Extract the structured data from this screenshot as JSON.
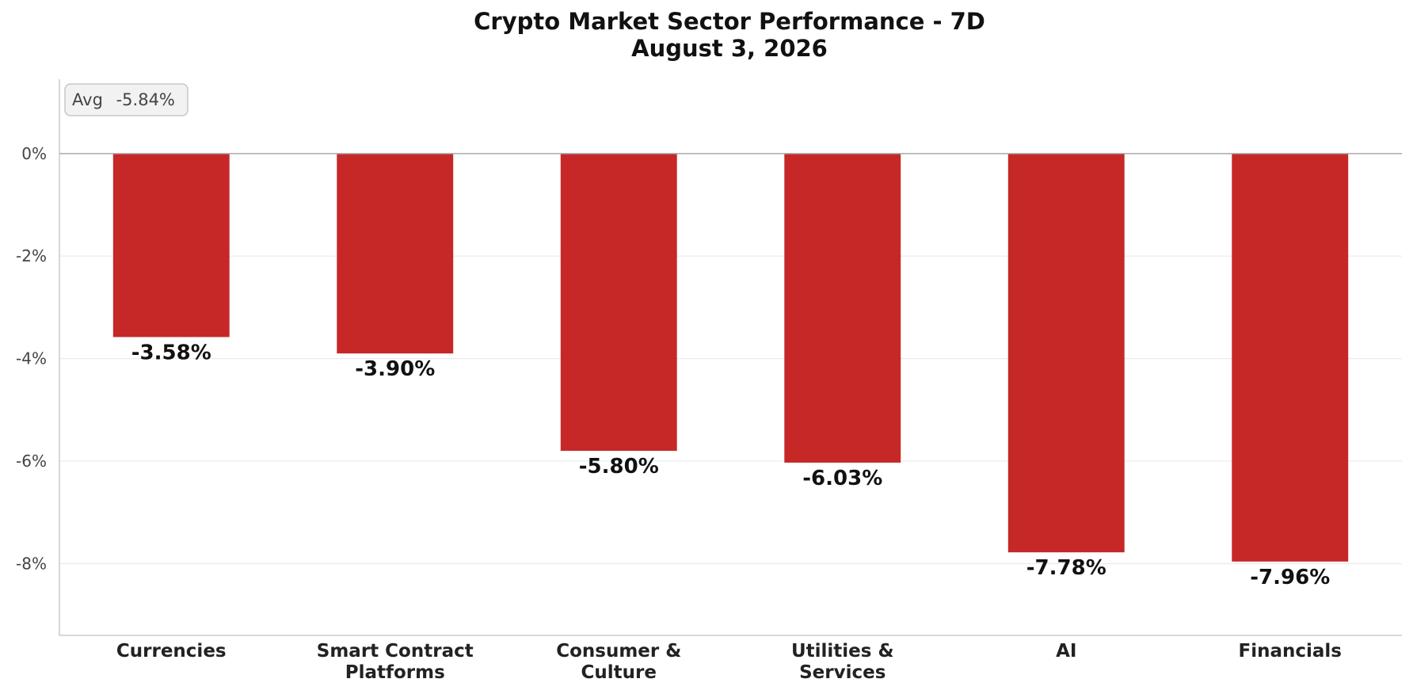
{
  "chart_data": {
    "type": "bar",
    "title": "Crypto Market Sector Performance - 7D",
    "subtitle": "August 3, 2026",
    "categories": [
      "Currencies",
      "Smart Contract Platforms",
      "Consumer & Culture",
      "Utilities & Services",
      "AI",
      "Financials"
    ],
    "category_lines": [
      [
        "Currencies"
      ],
      [
        "Smart Contract",
        "Platforms"
      ],
      [
        "Consumer &",
        "Culture"
      ],
      [
        "Utilities &",
        "Services"
      ],
      [
        "AI"
      ],
      [
        "Financials"
      ]
    ],
    "values": [
      -3.58,
      -3.9,
      -5.8,
      -6.03,
      -7.78,
      -7.96
    ],
    "data_labels": [
      "-3.58%",
      "-3.90%",
      "-5.80%",
      "-6.03%",
      "-7.78%",
      "-7.96%"
    ],
    "yticks": [
      0,
      -2,
      -4,
      -6,
      -8
    ],
    "ytick_labels": [
      "0%",
      "-2%",
      "-4%",
      "-6%",
      "-8%"
    ],
    "ylim": [
      -9.4,
      1.45
    ],
    "grid": true,
    "bar_color": "#c62828",
    "avg_label": "Avg",
    "avg_value": "-5.84%",
    "xlabel": "",
    "ylabel": ""
  }
}
